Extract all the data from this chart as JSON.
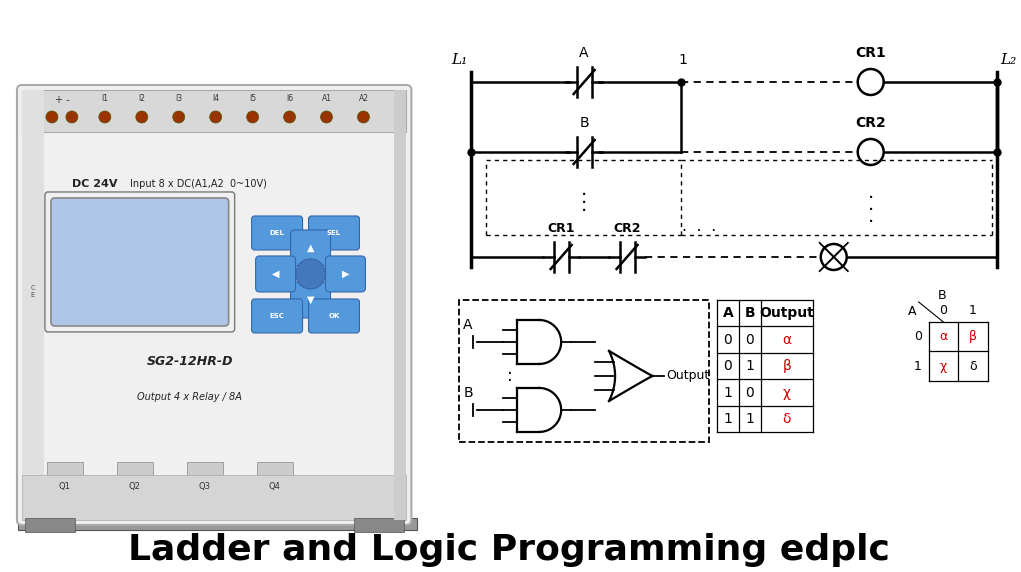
{
  "title": "Ladder and Logic Programming edplc",
  "title_fontsize": 26,
  "title_fontweight": "bold",
  "bg_color": "#ffffff",
  "text_color": "#000000",
  "red_color": "#cc0000",
  "ladder_L1": "L₁",
  "ladder_L2": "L₂",
  "coil_CR1_label": "CR1",
  "coil_CR2_label": "CR2",
  "input_A_label": "A",
  "input_B_label": "B",
  "output_label": "Output",
  "truth_headers": [
    "A",
    "B",
    "Output"
  ],
  "truth_rows": [
    [
      "0",
      "0",
      "α"
    ],
    [
      "0",
      "1",
      "β"
    ],
    [
      "1",
      "0",
      "χ"
    ],
    [
      "1",
      "1",
      "δ"
    ]
  ],
  "kmap_values": [
    [
      "α",
      "β"
    ],
    [
      "χ",
      "δ"
    ]
  ],
  "plc_body_color": "#e8e8e8",
  "plc_top_color": "#d0d0d0",
  "plc_screen_color": "#aec6e8",
  "plc_btn_color": "#5599dd",
  "plc_rail_color": "#bbbbbb",
  "plc_terminal_color": "#cc3300",
  "plc_label1": "DC 24V",
  "plc_label2": "Input 8 x DC(A1,A2  0~10V)",
  "plc_label3": "SG2-12HR-D",
  "plc_label4": "Output 4 x Relay / 8A",
  "plc_inputs": [
    "I1",
    "I2",
    "I3",
    "I4",
    "I5",
    "I6",
    "A1",
    "A2"
  ],
  "plc_outputs": [
    "Q1",
    "Q2",
    "Q3",
    "Q4"
  ]
}
